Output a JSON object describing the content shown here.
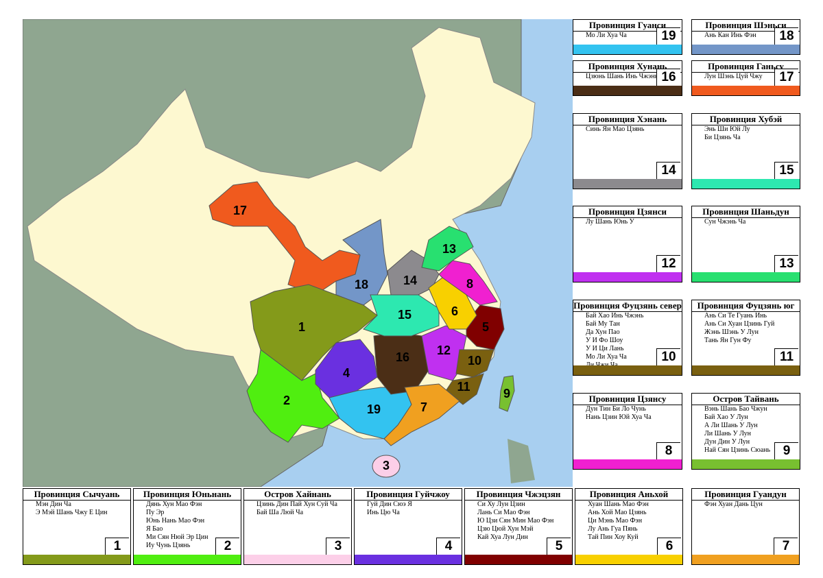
{
  "cards": [
    {
      "title": "Провинция Гуанси",
      "items": [
        "Мо Ли Хуа Ча"
      ],
      "number": 19,
      "color": "#33c3f0"
    },
    {
      "title": "Провинция Шэньси",
      "items": [
        "Ань Кан Инь Фэн"
      ],
      "number": 18,
      "color": "#7396c8"
    },
    {
      "title": "Провинция Хунань",
      "items": [
        "Цзюнь Шань Инь Чжэнь"
      ],
      "number": 16,
      "color": "#4b2e16"
    },
    {
      "title": "Провинция Ганьсу",
      "items": [
        "Лун Шэнь Цуй Чжу"
      ],
      "number": 17,
      "color": "#f05a1e"
    },
    {
      "title": "Провинция Хэнань",
      "items": [
        "Синь Ян Мао Цзянь"
      ],
      "number": 14,
      "color": "#8c8a8e"
    },
    {
      "title": "Провинция Хубэй",
      "items": [
        "Энь Ши Юй Лу",
        "Би Цзянь Ча"
      ],
      "number": 15,
      "color": "#2de8b0"
    },
    {
      "title": "Провинция Цзянси",
      "items": [
        "Лу Шань Юнь У"
      ],
      "number": 12,
      "color": "#c030f0"
    },
    {
      "title": "Провинция Шаньдун",
      "items": [
        "Сун Чжэнь Ча"
      ],
      "number": 13,
      "color": "#28e070"
    },
    {
      "title": "Провинция Фуцзянь север",
      "items": [
        "Бай Хао Инь Чжэнь",
        "Бай Му Тан",
        "Да Хун Пао",
        "У И Фо Шоу",
        "У И Ци Лань",
        "Мо Ли Хуа Ча",
        "Ли Чжи Ча"
      ],
      "number": 10,
      "color": "#7a6010"
    },
    {
      "title": "Провинция Фуцзянь юг",
      "items": [
        "Ань Си Те Гуань Инь",
        "Ань Си Хуан Цзинь Гуй",
        "Жэнь Шэнь У Лун",
        "Тань Ян Гун Фу"
      ],
      "number": 11,
      "color": "#7a6010"
    },
    {
      "title": "Провинция Цзянсу",
      "items": [
        "Дун Тин Би Ло Чунь",
        "Нань Цзин Юй Хуа Ча"
      ],
      "number": 8,
      "color": "#f020d0"
    },
    {
      "title": "Остров Тайвань",
      "items": [
        "Вэнь Шань Бао Чжун",
        "Бай Хао У Лун",
        "А Ли Шань У Лун",
        "Ли Шань У Лун",
        "Дун Дин У Лун",
        "Най Сян Цзинь Сюань"
      ],
      "number": 9,
      "color": "#78c030"
    },
    {
      "title": "Провинция Сычуань",
      "items": [
        "Мэн Дин Ча",
        "Э Мэй Шань Чжу Е Цин"
      ],
      "number": 1,
      "color": "#849a1a"
    },
    {
      "title": "Провинция Юньнань",
      "items": [
        "Дянь Хун Мао Фэн",
        "Пу Эр",
        "Юнь Нань Мао Фэн",
        "Я Бао",
        "Ми Сян Нюй Эр Цин",
        "Иу Чунь Цзянь"
      ],
      "number": 2,
      "color": "#50ee10"
    },
    {
      "title": "Остров Хайнань",
      "items": [
        "Цзинь Дин Пай Хун Суй Ча",
        "Бай Ша Люй Ча"
      ],
      "number": 3,
      "color": "#fccfe8"
    },
    {
      "title": "Провинция Гуйчжоу",
      "items": [
        "Гуй Дин Сюэ Я",
        "Инь Цю Ча"
      ],
      "number": 4,
      "color": "#6a30e0"
    },
    {
      "title": "Провинция Чжэцзян",
      "items": [
        "Си Ху Лун Цзин",
        "Лань Си Мао Фэн",
        "Ю Цзи Сян Мин Мао Фэн",
        "Цзю Цюй Хун Мэй",
        "Кай Хуа Лун Дин"
      ],
      "number": 5,
      "color": "#800000"
    },
    {
      "title": "Провинция Аньхой",
      "items": [
        "Хуан Шань Мао Фэн",
        "Ань Хой Мао Цзянь",
        "Ци Мэнь Мао Фэн",
        "Лу Ань Гуа Пянь",
        "Тай Пин Хоу Куй"
      ],
      "number": 6,
      "color": "#f8d000"
    },
    {
      "title": "Провинция Гуандун",
      "items": [
        "Фэн Хуан Дань Цун"
      ],
      "number": 7,
      "color": "#f0a020"
    }
  ]
}
